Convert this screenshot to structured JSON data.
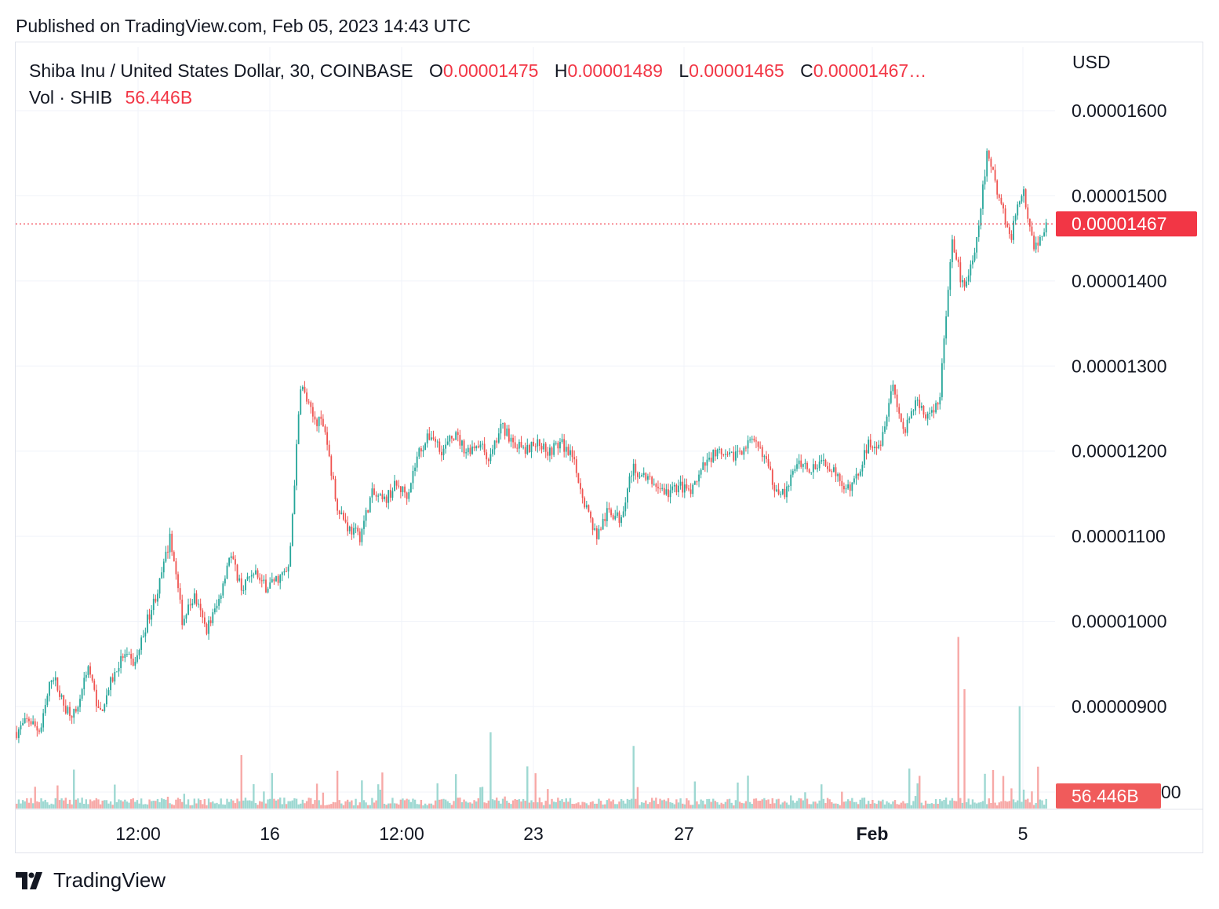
{
  "header": {
    "published": "Published on TradingView.com, Feb 05, 2023 14:43 UTC"
  },
  "legend": {
    "symbol": "Shiba Inu / United States Dollar, 30, COINBASE",
    "o_label": "O",
    "o_value": "0.00001475",
    "h_label": "H",
    "h_value": "0.00001489",
    "l_label": "L",
    "l_value": "0.00001465",
    "c_label": "C",
    "c_value": "0.00001467…",
    "vol_label": "Vol · SHIB",
    "vol_value": "56.446B"
  },
  "price_axis": {
    "currency": "USD",
    "last_price_label": "0.00001467",
    "volume_label": "56.446B"
  },
  "footer": {
    "brand": "TradingView"
  },
  "colors": {
    "up": "#26a69a",
    "down": "#ef5350",
    "up_volume": "#9ed8d2",
    "down_volume": "#f7a9a7",
    "last_price": "#f23645",
    "grid": "#f0f3fa"
  },
  "chart_data": {
    "type": "candlestick",
    "interval": "30",
    "exchange": "COINBASE",
    "symbol": "SHIB/USD",
    "x_ticks": [
      "12:00",
      "16",
      "12:00",
      "23",
      "27",
      "Feb",
      "5"
    ],
    "y_ticks": [
      "0.00001600",
      "0.00001500",
      "0.00001400",
      "0.00001300",
      "0.00001200",
      "0.00001100",
      "0.00001000",
      "0.00000900"
    ],
    "ylim": [
      8.2e-06,
      1.62e-05
    ],
    "last_price": 1.467e-05,
    "ohlc_last": {
      "open": 1.475e-05,
      "high": 1.489e-05,
      "low": 1.465e-05,
      "close": 1.467e-05
    },
    "volume_last": "56.446B",
    "grid": true,
    "close_path": [
      {
        "x": "Jan 13",
        "y": 8.7e-06
      },
      {
        "x": "Jan 13",
        "y": 8.85e-06
      },
      {
        "x": "Jan 13",
        "y": 8.7e-06
      },
      {
        "x": "Jan 14",
        "y": 9.4e-06
      },
      {
        "x": "Jan 14",
        "y": 9e-06
      },
      {
        "x": "Jan 14",
        "y": 8.9e-06
      },
      {
        "x": "Jan 14",
        "y": 9.5e-06
      },
      {
        "x": "Jan 14",
        "y": 8.9e-06
      },
      {
        "x": "Jan 15",
        "y": 9.3e-06
      },
      {
        "x": "Jan 15",
        "y": 9.6e-06
      },
      {
        "x": "Jan 15",
        "y": 9.5e-06
      },
      {
        "x": "Jan 15",
        "y": 1e-05
      },
      {
        "x": "Jan 15",
        "y": 1.04e-05
      },
      {
        "x": "Jan 15",
        "y": 1.1e-05
      },
      {
        "x": "Jan 15",
        "y": 1e-05
      },
      {
        "x": "Jan 16",
        "y": 1.03e-05
      },
      {
        "x": "Jan 16",
        "y": 9.9e-06
      },
      {
        "x": "Jan 16",
        "y": 1.02e-05
      },
      {
        "x": "Jan 16",
        "y": 1.08e-05
      },
      {
        "x": "Jan 16",
        "y": 1.04e-05
      },
      {
        "x": "Jan 16",
        "y": 1.06e-05
      },
      {
        "x": "Jan 17",
        "y": 1.04e-05
      },
      {
        "x": "Jan 17",
        "y": 1.05e-05
      },
      {
        "x": "Jan 17",
        "y": 1.06e-05
      },
      {
        "x": "Jan 17",
        "y": 1.28e-05
      },
      {
        "x": "Jan 17",
        "y": 1.24e-05
      },
      {
        "x": "Jan 18",
        "y": 1.23e-05
      },
      {
        "x": "Jan 18",
        "y": 1.14e-05
      },
      {
        "x": "Jan 18",
        "y": 1.11e-05
      },
      {
        "x": "Jan 18",
        "y": 1.1e-05
      },
      {
        "x": "Jan 18",
        "y": 1.15e-05
      },
      {
        "x": "Jan 19",
        "y": 1.14e-05
      },
      {
        "x": "Jan 19",
        "y": 1.16e-05
      },
      {
        "x": "Jan 19",
        "y": 1.15e-05
      },
      {
        "x": "Jan 19",
        "y": 1.2e-05
      },
      {
        "x": "Jan 20",
        "y": 1.22e-05
      },
      {
        "x": "Jan 20",
        "y": 1.2e-05
      },
      {
        "x": "Jan 20",
        "y": 1.22e-05
      },
      {
        "x": "Jan 21",
        "y": 1.2e-05
      },
      {
        "x": "Jan 21",
        "y": 1.21e-05
      },
      {
        "x": "Jan 22",
        "y": 1.19e-05
      },
      {
        "x": "Jan 22",
        "y": 1.23e-05
      },
      {
        "x": "Jan 23",
        "y": 1.21e-05
      },
      {
        "x": "Jan 23",
        "y": 1.2e-05
      },
      {
        "x": "Jan 23",
        "y": 1.21e-05
      },
      {
        "x": "Jan 24",
        "y": 1.2e-05
      },
      {
        "x": "Jan 24",
        "y": 1.21e-05
      },
      {
        "x": "Jan 24",
        "y": 1.19e-05
      },
      {
        "x": "Jan 25",
        "y": 1.14e-05
      },
      {
        "x": "Jan 25",
        "y": 1.1e-05
      },
      {
        "x": "Jan 25",
        "y": 1.13e-05
      },
      {
        "x": "Jan 25",
        "y": 1.12e-05
      },
      {
        "x": "Jan 25",
        "y": 1.18e-05
      },
      {
        "x": "Jan 26",
        "y": 1.17e-05
      },
      {
        "x": "Jan 26",
        "y": 1.16e-05
      },
      {
        "x": "Jan 26",
        "y": 1.15e-05
      },
      {
        "x": "Jan 27",
        "y": 1.16e-05
      },
      {
        "x": "Jan 27",
        "y": 1.15e-05
      },
      {
        "x": "Jan 27",
        "y": 1.18e-05
      },
      {
        "x": "Jan 28",
        "y": 1.2e-05
      },
      {
        "x": "Jan 28",
        "y": 1.19e-05
      },
      {
        "x": "Jan 28",
        "y": 1.2e-05
      },
      {
        "x": "Jan 29",
        "y": 1.21e-05
      },
      {
        "x": "Jan 29",
        "y": 1.2e-05
      },
      {
        "x": "Jan 30",
        "y": 1.16e-05
      },
      {
        "x": "Jan 30",
        "y": 1.15e-05
      },
      {
        "x": "Jan 30",
        "y": 1.19e-05
      },
      {
        "x": "Jan 31",
        "y": 1.18e-05
      },
      {
        "x": "Jan 31",
        "y": 1.19e-05
      },
      {
        "x": "Feb 1",
        "y": 1.18e-05
      },
      {
        "x": "Feb 1",
        "y": 1.15e-05
      },
      {
        "x": "Feb 1",
        "y": 1.17e-05
      },
      {
        "x": "Feb 1",
        "y": 1.21e-05
      },
      {
        "x": "Feb 2",
        "y": 1.21e-05
      },
      {
        "x": "Feb 2",
        "y": 1.28e-05
      },
      {
        "x": "Feb 2",
        "y": 1.22e-05
      },
      {
        "x": "Feb 2",
        "y": 1.26e-05
      },
      {
        "x": "Feb 3",
        "y": 1.24e-05
      },
      {
        "x": "Feb 3",
        "y": 1.26e-05
      },
      {
        "x": "Feb 4",
        "y": 1.45e-05
      },
      {
        "x": "Feb 4",
        "y": 1.39e-05
      },
      {
        "x": "Feb 4",
        "y": 1.43e-05
      },
      {
        "x": "Feb 4",
        "y": 1.55e-05
      },
      {
        "x": "Feb 4",
        "y": 1.5e-05
      },
      {
        "x": "Feb 4",
        "y": 1.45e-05
      },
      {
        "x": "Feb 5",
        "y": 1.51e-05
      },
      {
        "x": "Feb 5",
        "y": 1.44e-05
      },
      {
        "x": "Feb 5",
        "y": 1.467e-05
      }
    ]
  }
}
